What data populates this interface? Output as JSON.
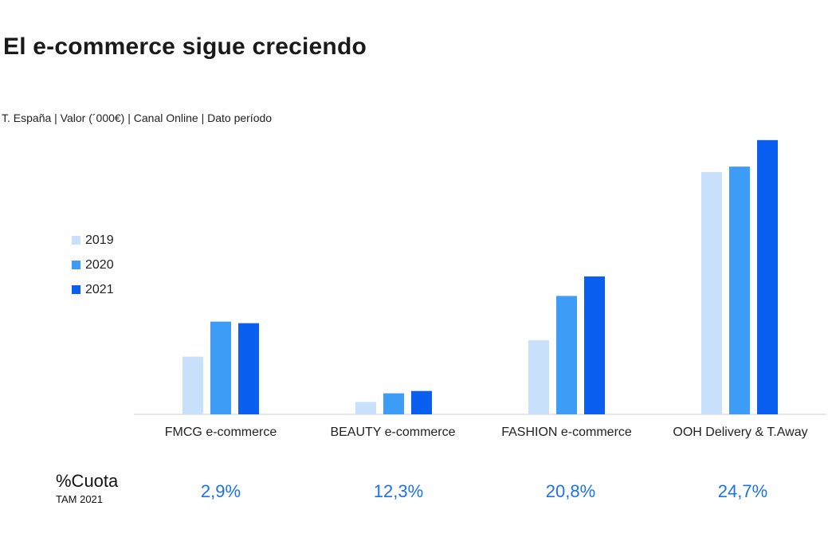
{
  "title": "El e-commerce sigue creciendo",
  "subtitle": "T. España | Valor (´000€) |  Canal Online | Dato período",
  "colors": {
    "2019": "#c9e0fa",
    "2020": "#3d9cf5",
    "2021": "#0a5ef0",
    "axis": "#d0d0d0",
    "share": "#1a73e8"
  },
  "chart_data": {
    "type": "bar",
    "categories": [
      "FMCG e-commerce",
      "BEAUTY e-commerce",
      "FASHION e-commerce",
      "OOH Delivery & T.Away"
    ],
    "series": [
      {
        "name": "2019",
        "values": [
          74,
          16,
          95,
          311
        ]
      },
      {
        "name": "2020",
        "values": [
          119,
          27,
          152,
          318
        ]
      },
      {
        "name": "2021",
        "values": [
          117,
          30,
          177,
          352
        ]
      }
    ],
    "ylim": [
      0,
      360
    ],
    "grid": false,
    "legend_position": "left"
  },
  "share": {
    "title": "%Cuota",
    "subtitle": "TAM 2021",
    "values": [
      "2,9%",
      "12,3%",
      "20,8%",
      "24,7%"
    ]
  }
}
